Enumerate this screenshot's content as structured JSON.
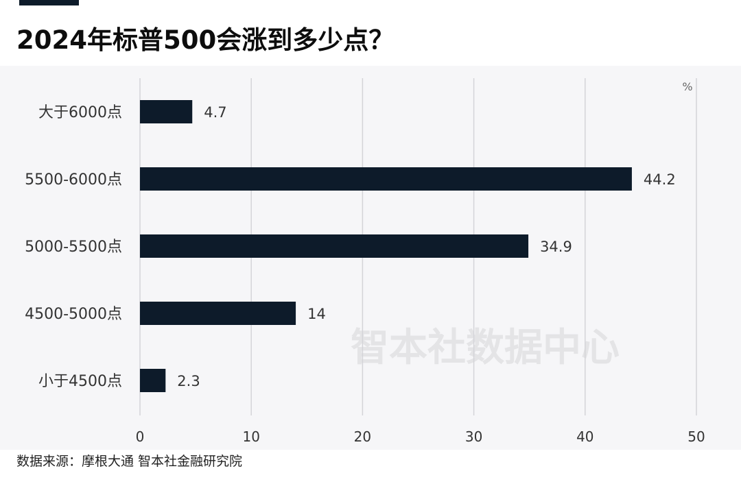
{
  "title": "2024年标普500会涨到多少点？",
  "source": "数据来源：摩根大通 智本社金融研究院",
  "watermark": "智本社数据中心",
  "colors": {
    "bar": "#0d1b2a",
    "grid": "#d4d4d8",
    "label": "#333333",
    "watermark": "#e4e4e6"
  },
  "chart_data": {
    "type": "bar",
    "orientation": "horizontal",
    "categories": [
      "大于6000点",
      "5500-6000点",
      "5000-5500点",
      "4500-5000点",
      "小于4500点"
    ],
    "values": [
      4.7,
      44.2,
      34.9,
      14,
      2.3
    ],
    "value_labels": [
      "4.7",
      "44.2",
      "34.9",
      "14",
      "2.3"
    ],
    "unit": "%",
    "xlim": [
      0,
      50
    ],
    "xticks": [
      "0",
      "10",
      "20",
      "30",
      "40",
      "50"
    ],
    "grid": true,
    "legend": "none"
  }
}
